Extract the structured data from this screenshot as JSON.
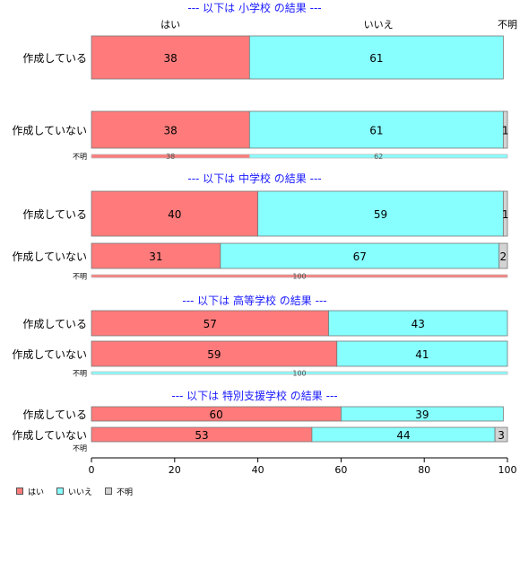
{
  "chart_data": {
    "type": "bar",
    "orientation": "horizontal",
    "stacked": "percent",
    "xlim": [
      0,
      100
    ],
    "x_ticks": [
      "0",
      "20",
      "40",
      "60",
      "80",
      "100"
    ],
    "top_labels": [
      "はい",
      "いいえ",
      "不明"
    ],
    "series_names": [
      "はい",
      "いいえ",
      "不明"
    ],
    "colors": [
      "#ff7b7b",
      "#87ffff",
      "#d3d3d3"
    ],
    "legend": {
      "position": "bottom-left",
      "items": [
        "はい",
        "いいえ",
        "不明"
      ]
    },
    "panels": [
      {
        "title": "--- 以下は 小学校 の結果 ---",
        "rows": [
          {
            "label": "作成している",
            "values": [
              38,
              61,
              0
            ],
            "labels": [
              "38",
              "61",
              ""
            ]
          },
          {
            "label": "作成していない",
            "values": [
              38,
              61,
              1
            ],
            "labels": [
              "38",
              "61",
              "1"
            ]
          },
          {
            "label": "不明",
            "values": [
              38,
              62,
              0
            ],
            "labels": [
              "38",
              "62",
              ""
            ],
            "thin": true
          }
        ]
      },
      {
        "title": "--- 以下は 中学校 の結果 ---",
        "rows": [
          {
            "label": "作成している",
            "values": [
              40,
              59,
              1
            ],
            "labels": [
              "40",
              "59",
              "1"
            ]
          },
          {
            "label": "作成していない",
            "values": [
              31,
              67,
              2
            ],
            "labels": [
              "31",
              "67",
              "2"
            ]
          },
          {
            "label": "不明",
            "values": [
              100,
              0,
              0
            ],
            "labels": [
              "100",
              "",
              ""
            ],
            "thin": true
          }
        ]
      },
      {
        "title": "--- 以下は 高等学校 の結果 ---",
        "rows": [
          {
            "label": "作成している",
            "values": [
              57,
              43,
              0
            ],
            "labels": [
              "57",
              "43",
              ""
            ]
          },
          {
            "label": "作成していない",
            "values": [
              59,
              41,
              0
            ],
            "labels": [
              "59",
              "41",
              ""
            ]
          },
          {
            "label": "不明",
            "values": [
              0,
              100,
              0
            ],
            "labels": [
              "",
              "100",
              ""
            ],
            "thin": true
          }
        ]
      },
      {
        "title": "--- 以下は 特別支援学校 の結果 ---",
        "rows": [
          {
            "label": "作成している",
            "values": [
              60,
              39,
              0
            ],
            "labels": [
              "60",
              "39",
              ""
            ]
          },
          {
            "label": "作成していない",
            "values": [
              53,
              44,
              3
            ],
            "labels": [
              "53",
              "44",
              "3"
            ]
          },
          {
            "label": "不明",
            "values": [
              0,
              0,
              0
            ],
            "labels": [
              "",
              "",
              ""
            ],
            "thin": true
          }
        ]
      }
    ]
  }
}
